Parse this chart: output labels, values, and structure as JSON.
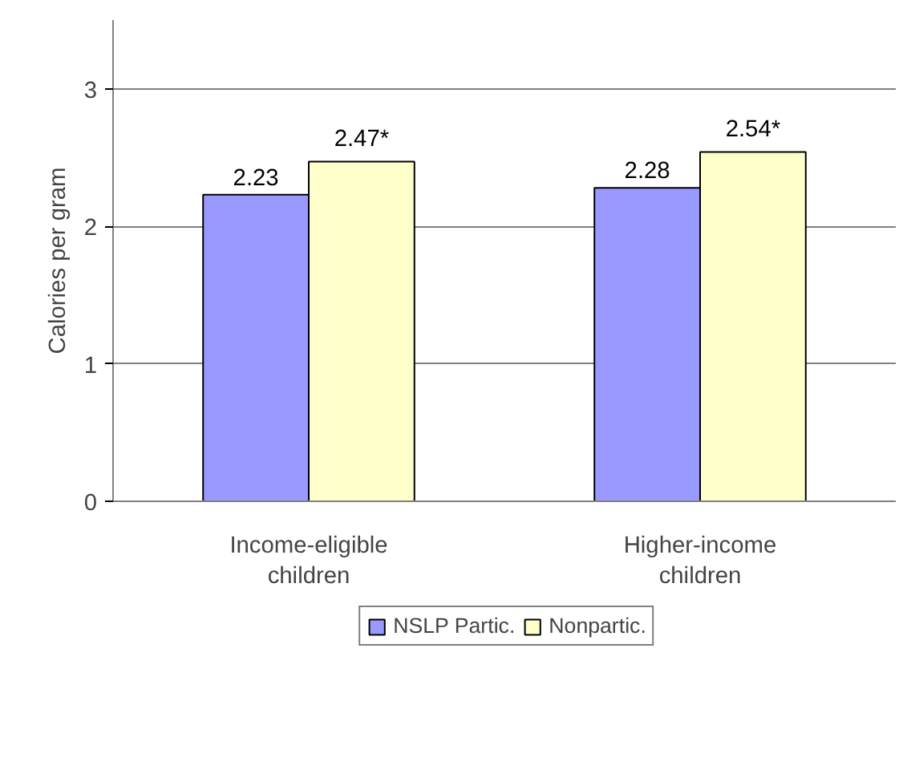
{
  "chart_data": {
    "type": "bar",
    "ylabel": "Calories per gram",
    "categories": [
      "Income-eligible children",
      "Higher-income children"
    ],
    "series": [
      {
        "name": "NSLP Partic.",
        "color": "#9999ff",
        "values": [
          2.23,
          2.28
        ],
        "value_labels": [
          "2.23",
          "2.28"
        ]
      },
      {
        "name": "Nonpartic.",
        "color": "#ffffcc",
        "values": [
          2.47,
          2.54
        ],
        "value_labels": [
          "2.47*",
          "2.54*"
        ]
      }
    ],
    "ylim": [
      0,
      3.5
    ],
    "yticks": [
      0,
      1,
      2,
      3
    ],
    "grid": "y",
    "legend": "bottom"
  }
}
